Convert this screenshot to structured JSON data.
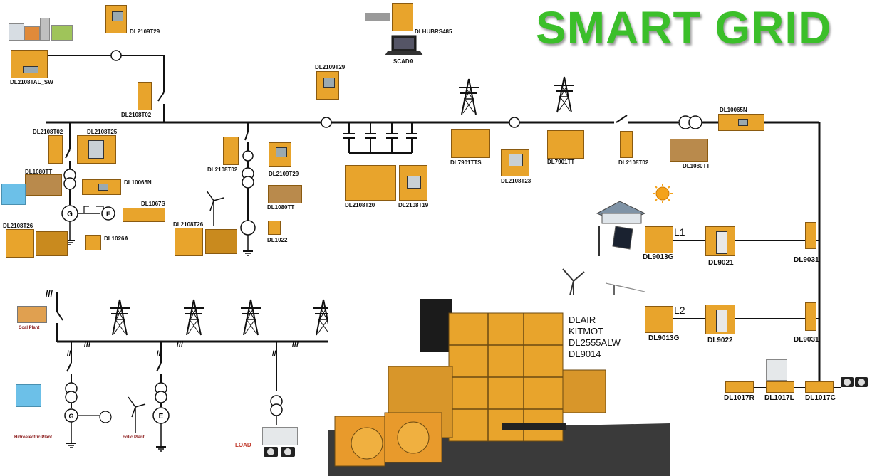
{
  "title": "SMART GRID",
  "labels": {
    "dl2108tal_sw": "DL2108TAL_SW",
    "dl2109t29_top": "DL2109T29",
    "dl2108t02_top": "DL2108T02",
    "dlhubrs485": "DLHUBRS485",
    "scada": "SCADA",
    "dl2109t29_mid": "DL2109T29",
    "dl10065n_right": "DL10065N",
    "dl2108t02_left": "DL2108T02",
    "dl2108t25": "DL2108T25",
    "dl1080tt_left": "DL1080TT",
    "dl10065n_left": "DL10065N",
    "dl1067s": "DL1067S",
    "dl2108t26_left": "DL2108T26",
    "dl1026a": "DL1026A",
    "dl2108t02_mid": "DL2108T02",
    "dl2109t29_low": "DL2109T29",
    "dl1080tt_mid": "DL1080TT",
    "dl2108t26_mid": "DL2108T26",
    "dl1022": "DL1022",
    "dl2108t20": "DL2108T20",
    "dl2108t19": "DL2108T19",
    "dl7901tts": "DL7901TTS",
    "dl2108t23": "DL2108T23",
    "dl7901tt": "DL7901TT",
    "dl2108t02_right": "DL2108T02",
    "dl1080tt_right": "DL1080TT",
    "l1": "L1",
    "l2": "L2",
    "dl9013g_1": "DL9013G",
    "dl9021": "DL9021",
    "dl9031_1": "DL9031",
    "dl9013g_2": "DL9013G",
    "dl9022": "DL9022",
    "dl9031_2": "DL9031",
    "dl1017r": "DL1017R",
    "dl1017l": "DL1017L",
    "dl1017c": "DL1017C",
    "kit_lines": [
      "DLAIR",
      "KITMOT",
      "DL2555ALW",
      "DL9014"
    ],
    "coal_plant": "Coal Plant",
    "hydro_plant": "Hidroelectric Plant",
    "eolic_plant": "Eolic Plant",
    "load": "LOAD"
  },
  "colors": {
    "title_green": "#3bbf2a",
    "panel_orange": "#e8a42c",
    "line_black": "#111111"
  },
  "icons": {
    "tower": "transmission-tower-icon",
    "transformer": "transformer-icon",
    "generator": "generator-icon",
    "wind": "wind-turbine-icon",
    "sun": "sun-icon",
    "laptop": "laptop-icon",
    "load": "load-icon"
  }
}
